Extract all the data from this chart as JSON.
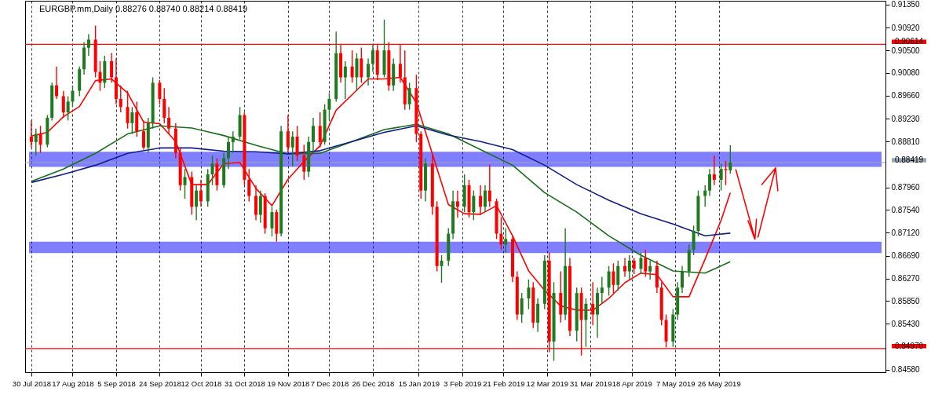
{
  "chart_data": {
    "type": "candlestick",
    "title": "EURGBP.mm,Daily 0.88276 0.88740 0.88214 0.88419",
    "xlim": [
      "2018-07-29",
      "2019-08-05"
    ],
    "xticks": [
      {
        "value": "2018-07-30",
        "label": "30 Jul 2018"
      },
      {
        "value": "2018-08-17",
        "label": "17 Aug 2018"
      },
      {
        "value": "2018-09-05",
        "label": "5 Sep 2018"
      },
      {
        "value": "2018-09-24",
        "label": "24 Sep 2018"
      },
      {
        "value": "2018-10-12",
        "label": "12 Oct 2018"
      },
      {
        "value": "2018-10-31",
        "label": "31 Oct 2018"
      },
      {
        "value": "2018-11-19",
        "label": "19 Nov 2018"
      },
      {
        "value": "2018-12-07",
        "label": "7 Dec 2018"
      },
      {
        "value": "2018-12-26",
        "label": "26 Dec 2018"
      },
      {
        "value": "2019-01-15",
        "label": "15 Jan 2019"
      },
      {
        "value": "2019-02-03",
        "label": "3 Feb 2019"
      },
      {
        "value": "2019-02-21",
        "label": "21 Feb 2019"
      },
      {
        "value": "2019-03-12",
        "label": "12 Mar 2019"
      },
      {
        "value": "2019-03-31",
        "label": "31 Mar 2019"
      },
      {
        "value": "2019-04-18",
        "label": "18 Apr 2019"
      },
      {
        "value": "2019-05-07",
        "label": "7 May 2019"
      },
      {
        "value": "2019-05-26",
        "label": "26 May 2019"
      }
    ],
    "ylim": [
      0.8453,
      0.9142
    ],
    "yticks": [
      {
        "value": 0.9135,
        "label": "0.91350"
      },
      {
        "value": 0.9092,
        "label": "0.90920"
      },
      {
        "value": 0.905,
        "label": "0.90500"
      },
      {
        "value": 0.9008,
        "label": "0.90080"
      },
      {
        "value": 0.8966,
        "label": "0.89660"
      },
      {
        "value": 0.8923,
        "label": "0.89230"
      },
      {
        "value": 0.8881,
        "label": "0.88810"
      },
      {
        "value": 0.8796,
        "label": "0.87960"
      },
      {
        "value": 0.8754,
        "label": "0.87540"
      },
      {
        "value": 0.8712,
        "label": "0.87120"
      },
      {
        "value": 0.8669,
        "label": "0.86690"
      },
      {
        "value": 0.8627,
        "label": "0.86270"
      },
      {
        "value": 0.8585,
        "label": "0.85850"
      },
      {
        "value": 0.8543,
        "label": "0.85430"
      },
      {
        "value": 0.8458,
        "label": "0.84580"
      }
    ],
    "grid": "x",
    "x": [
      "2018-07-30",
      "2018-08-01",
      "2018-08-03",
      "2018-08-06",
      "2018-08-08",
      "2018-08-10",
      "2018-08-13",
      "2018-08-15",
      "2018-08-17",
      "2018-08-20",
      "2018-08-22",
      "2018-08-24",
      "2018-08-27",
      "2018-08-29",
      "2018-08-31",
      "2018-09-03",
      "2018-09-05",
      "2018-09-07",
      "2018-09-10",
      "2018-09-12",
      "2018-09-14",
      "2018-09-17",
      "2018-09-19",
      "2018-09-21",
      "2018-09-24",
      "2018-09-26",
      "2018-09-28",
      "2018-10-01",
      "2018-10-03",
      "2018-10-05",
      "2018-10-08",
      "2018-10-10",
      "2018-10-12",
      "2018-10-15",
      "2018-10-17",
      "2018-10-19",
      "2018-10-22",
      "2018-10-24",
      "2018-10-26",
      "2018-10-29",
      "2018-10-31",
      "2018-11-02",
      "2018-11-05",
      "2018-11-07",
      "2018-11-09",
      "2018-11-12",
      "2018-11-14",
      "2018-11-16",
      "2018-11-19",
      "2018-11-21",
      "2018-11-23",
      "2018-11-26",
      "2018-11-28",
      "2018-11-30",
      "2018-12-03",
      "2018-12-05",
      "2018-12-07",
      "2018-12-10",
      "2018-12-12",
      "2018-12-14",
      "2018-12-17",
      "2018-12-19",
      "2018-12-21",
      "2018-12-24",
      "2018-12-26",
      "2018-12-28",
      "2018-12-31",
      "2019-01-02",
      "2019-01-04",
      "2019-01-07",
      "2019-01-09",
      "2019-01-11",
      "2019-01-14",
      "2019-01-16",
      "2019-01-18",
      "2019-01-21",
      "2019-01-23",
      "2019-01-25",
      "2019-01-28",
      "2019-01-30",
      "2019-02-01",
      "2019-02-04",
      "2019-02-06",
      "2019-02-08",
      "2019-02-11",
      "2019-02-13",
      "2019-02-15",
      "2019-02-18",
      "2019-02-20",
      "2019-02-22",
      "2019-02-25",
      "2019-02-27",
      "2019-03-01",
      "2019-03-04",
      "2019-03-06",
      "2019-03-08",
      "2019-03-11",
      "2019-03-13",
      "2019-03-15",
      "2019-03-18",
      "2019-03-20",
      "2019-03-22",
      "2019-03-25",
      "2019-03-27",
      "2019-03-29",
      "2019-04-01",
      "2019-04-03",
      "2019-04-05",
      "2019-04-08",
      "2019-04-10",
      "2019-04-12",
      "2019-04-15",
      "2019-04-17",
      "2019-04-19",
      "2019-04-22",
      "2019-04-24",
      "2019-04-26",
      "2019-04-29",
      "2019-05-01",
      "2019-05-03",
      "2019-05-06",
      "2019-05-08",
      "2019-05-10",
      "2019-05-13",
      "2019-05-15",
      "2019-05-17",
      "2019-05-20",
      "2019-05-22",
      "2019-05-24",
      "2019-05-27",
      "2019-05-29",
      "2019-05-31"
    ],
    "ohlc": [
      [
        0.889,
        0.892,
        0.887,
        0.888
      ],
      [
        0.888,
        0.8905,
        0.8855,
        0.8895
      ],
      [
        0.8895,
        0.891,
        0.886,
        0.8875
      ],
      [
        0.8875,
        0.893,
        0.887,
        0.8925
      ],
      [
        0.8925,
        0.899,
        0.892,
        0.8985
      ],
      [
        0.8985,
        0.902,
        0.896,
        0.8965
      ],
      [
        0.8965,
        0.8975,
        0.8925,
        0.8935
      ],
      [
        0.8935,
        0.8965,
        0.892,
        0.8955
      ],
      [
        0.8955,
        0.8985,
        0.8945,
        0.8975
      ],
      [
        0.8975,
        0.902,
        0.8965,
        0.9015
      ],
      [
        0.9015,
        0.9065,
        0.9005,
        0.9055
      ],
      [
        0.9055,
        0.908,
        0.904,
        0.907
      ],
      [
        0.907,
        0.9096,
        0.9,
        0.901
      ],
      [
        0.901,
        0.903,
        0.8975,
        0.899
      ],
      [
        0.899,
        0.904,
        0.898,
        0.903
      ],
      [
        0.903,
        0.9045,
        0.899,
        0.9
      ],
      [
        0.9,
        0.9035,
        0.895,
        0.896
      ],
      [
        0.896,
        0.8985,
        0.8935,
        0.8945
      ],
      [
        0.8945,
        0.8975,
        0.8905,
        0.8915
      ],
      [
        0.8915,
        0.8945,
        0.8895,
        0.8935
      ],
      [
        0.8935,
        0.8955,
        0.889,
        0.89
      ],
      [
        0.89,
        0.892,
        0.8866,
        0.887
      ],
      [
        0.887,
        0.8925,
        0.886,
        0.8915
      ],
      [
        0.8915,
        0.9,
        0.8905,
        0.899
      ],
      [
        0.899,
        0.8995,
        0.895,
        0.896
      ],
      [
        0.896,
        0.898,
        0.8915,
        0.8925
      ],
      [
        0.8925,
        0.8945,
        0.8895,
        0.8905
      ],
      [
        0.8905,
        0.8915,
        0.885,
        0.886
      ],
      [
        0.886,
        0.887,
        0.879,
        0.88
      ],
      [
        0.88,
        0.883,
        0.8775,
        0.8815
      ],
      [
        0.8815,
        0.8825,
        0.8745,
        0.876
      ],
      [
        0.876,
        0.88,
        0.8735,
        0.879
      ],
      [
        0.879,
        0.881,
        0.876,
        0.877
      ],
      [
        0.877,
        0.883,
        0.876,
        0.882
      ],
      [
        0.882,
        0.8855,
        0.88,
        0.884
      ],
      [
        0.884,
        0.885,
        0.879,
        0.88
      ],
      [
        0.88,
        0.886,
        0.8795,
        0.885
      ],
      [
        0.885,
        0.889,
        0.883,
        0.888
      ],
      [
        0.888,
        0.89,
        0.886,
        0.889
      ],
      [
        0.889,
        0.8945,
        0.8885,
        0.893
      ],
      [
        0.893,
        0.8935,
        0.88,
        0.881
      ],
      [
        0.881,
        0.883,
        0.877,
        0.878
      ],
      [
        0.878,
        0.88,
        0.8735,
        0.8745
      ],
      [
        0.8745,
        0.879,
        0.873,
        0.878
      ],
      [
        0.878,
        0.8785,
        0.871,
        0.872
      ],
      [
        0.872,
        0.876,
        0.8705,
        0.875
      ],
      [
        0.875,
        0.8755,
        0.8695,
        0.871
      ],
      [
        0.871,
        0.891,
        0.8705,
        0.89
      ],
      [
        0.89,
        0.893,
        0.886,
        0.887
      ],
      [
        0.887,
        0.89,
        0.8835,
        0.889
      ],
      [
        0.889,
        0.891,
        0.8845,
        0.8855
      ],
      [
        0.8855,
        0.8875,
        0.881,
        0.8825
      ],
      [
        0.8825,
        0.889,
        0.8815,
        0.888
      ],
      [
        0.888,
        0.8925,
        0.886,
        0.891
      ],
      [
        0.891,
        0.8935,
        0.887,
        0.888
      ],
      [
        0.888,
        0.895,
        0.8875,
        0.894
      ],
      [
        0.894,
        0.897,
        0.892,
        0.896
      ],
      [
        0.896,
        0.9085,
        0.8955,
        0.9045
      ],
      [
        0.9045,
        0.906,
        0.899,
        0.9
      ],
      [
        0.9,
        0.903,
        0.896,
        0.902
      ],
      [
        0.902,
        0.905,
        0.899,
        0.9
      ],
      [
        0.9,
        0.9045,
        0.8975,
        0.9035
      ],
      [
        0.9035,
        0.9055,
        0.899,
        0.9
      ],
      [
        0.9,
        0.9035,
        0.8985,
        0.9025
      ],
      [
        0.9025,
        0.906,
        0.901,
        0.905
      ],
      [
        0.905,
        0.906,
        0.8995,
        0.9005
      ],
      [
        0.9005,
        0.9107,
        0.9,
        0.905
      ],
      [
        0.905,
        0.9065,
        0.8975,
        0.8985
      ],
      [
        0.8985,
        0.9035,
        0.8975,
        0.9025
      ],
      [
        0.9025,
        0.906,
        0.899,
        0.9
      ],
      [
        0.9,
        0.905,
        0.894,
        0.895
      ],
      [
        0.895,
        0.899,
        0.894,
        0.898
      ],
      [
        0.898,
        0.9005,
        0.888,
        0.8895
      ],
      [
        0.8895,
        0.89,
        0.8775,
        0.879
      ],
      [
        0.879,
        0.885,
        0.877,
        0.884
      ],
      [
        0.884,
        0.8855,
        0.8745,
        0.876
      ],
      [
        0.876,
        0.877,
        0.864,
        0.865
      ],
      [
        0.865,
        0.867,
        0.8619,
        0.866
      ],
      [
        0.866,
        0.872,
        0.865,
        0.871
      ],
      [
        0.871,
        0.879,
        0.87,
        0.877
      ],
      [
        0.877,
        0.879,
        0.874,
        0.876
      ],
      [
        0.876,
        0.882,
        0.875,
        0.88
      ],
      [
        0.88,
        0.881,
        0.874,
        0.875
      ],
      [
        0.875,
        0.879,
        0.8735,
        0.878
      ],
      [
        0.878,
        0.88,
        0.8745,
        0.876
      ],
      [
        0.876,
        0.88,
        0.875,
        0.879
      ],
      [
        0.879,
        0.8838,
        0.876,
        0.877
      ],
      [
        0.877,
        0.8775,
        0.87,
        0.871
      ],
      [
        0.871,
        0.874,
        0.868,
        0.869
      ],
      [
        0.869,
        0.872,
        0.8675,
        0.87
      ],
      [
        0.87,
        0.8705,
        0.862,
        0.863
      ],
      [
        0.863,
        0.864,
        0.855,
        0.856
      ],
      [
        0.856,
        0.86,
        0.8545,
        0.859
      ],
      [
        0.859,
        0.8625,
        0.857,
        0.861
      ],
      [
        0.861,
        0.862,
        0.8535,
        0.8545
      ],
      [
        0.8545,
        0.859,
        0.8528,
        0.858
      ],
      [
        0.858,
        0.867,
        0.857,
        0.866
      ],
      [
        0.866,
        0.8675,
        0.849,
        0.851
      ],
      [
        0.851,
        0.862,
        0.8474,
        0.86
      ],
      [
        0.86,
        0.864,
        0.8545,
        0.856
      ],
      [
        0.856,
        0.872,
        0.855,
        0.865
      ],
      [
        0.865,
        0.8665,
        0.852,
        0.853
      ],
      [
        0.853,
        0.861,
        0.851,
        0.86
      ],
      [
        0.86,
        0.861,
        0.8484,
        0.855
      ],
      [
        0.855,
        0.859,
        0.85,
        0.858
      ],
      [
        0.858,
        0.862,
        0.854,
        0.856
      ],
      [
        0.856,
        0.861,
        0.8517,
        0.86
      ],
      [
        0.86,
        0.863,
        0.858,
        0.861
      ],
      [
        0.861,
        0.865,
        0.8595,
        0.864
      ],
      [
        0.864,
        0.8655,
        0.86,
        0.8615
      ],
      [
        0.8615,
        0.866,
        0.8605,
        0.865
      ],
      [
        0.865,
        0.8665,
        0.863,
        0.864
      ],
      [
        0.864,
        0.867,
        0.8625,
        0.866
      ],
      [
        0.866,
        0.8665,
        0.8635,
        0.8645
      ],
      [
        0.8645,
        0.8675,
        0.8635,
        0.8665
      ],
      [
        0.8665,
        0.868,
        0.863,
        0.864
      ],
      [
        0.864,
        0.866,
        0.8625,
        0.865
      ],
      [
        0.865,
        0.866,
        0.86,
        0.861
      ],
      [
        0.861,
        0.862,
        0.854,
        0.855
      ],
      [
        0.855,
        0.856,
        0.8499,
        0.851
      ],
      [
        0.851,
        0.857,
        0.85,
        0.856
      ],
      [
        0.856,
        0.862,
        0.855,
        0.861
      ],
      [
        0.861,
        0.865,
        0.86,
        0.864
      ],
      [
        0.864,
        0.869,
        0.863,
        0.868
      ],
      [
        0.868,
        0.8725,
        0.867,
        0.8715
      ],
      [
        0.8715,
        0.879,
        0.8705,
        0.878
      ],
      [
        0.878,
        0.88,
        0.876,
        0.879
      ],
      [
        0.879,
        0.883,
        0.878,
        0.882
      ],
      [
        0.882,
        0.8855,
        0.88,
        0.881
      ],
      [
        0.881,
        0.884,
        0.879,
        0.883
      ],
      [
        0.883,
        0.8845,
        0.88,
        0.8828
      ],
      [
        0.88276,
        0.8874,
        0.88214,
        0.88419
      ]
    ],
    "colors": [
      "#ff0000",
      "#1f7a1f",
      "#ff0000",
      "#1f7a1f",
      "#1f7a1f",
      "#ff0000",
      "#ff0000",
      "#1f7a1f",
      "#1f7a1f",
      "#1f7a1f",
      "#1f7a1f",
      "#1f7a1f",
      "#ff0000",
      "#ff0000",
      "#1f7a1f",
      "#ff0000",
      "#ff0000",
      "#ff0000",
      "#ff0000",
      "#1f7a1f",
      "#ff0000",
      "#ff0000",
      "#1f7a1f",
      "#1f7a1f",
      "#ff0000",
      "#ff0000",
      "#ff0000",
      "#ff0000",
      "#ff0000",
      "#1f7a1f",
      "#ff0000",
      "#1f7a1f",
      "#ff0000",
      "#1f7a1f",
      "#1f7a1f",
      "#ff0000",
      "#1f7a1f",
      "#1f7a1f",
      "#1f7a1f",
      "#1f7a1f",
      "#ff0000",
      "#ff0000",
      "#ff0000",
      "#1f7a1f",
      "#ff0000",
      "#1f7a1f",
      "#ff0000",
      "#1f7a1f",
      "#ff0000",
      "#1f7a1f",
      "#ff0000",
      "#ff0000",
      "#1f7a1f",
      "#1f7a1f",
      "#ff0000",
      "#1f7a1f",
      "#1f7a1f",
      "#1f7a1f",
      "#ff0000",
      "#1f7a1f",
      "#ff0000",
      "#1f7a1f",
      "#ff0000",
      "#1f7a1f",
      "#1f7a1f",
      "#ff0000",
      "#1f7a1f",
      "#ff0000",
      "#1f7a1f",
      "#ff0000",
      "#ff0000",
      "#1f7a1f",
      "#ff0000",
      "#ff0000",
      "#1f7a1f",
      "#ff0000",
      "#ff0000",
      "#1f7a1f",
      "#1f7a1f",
      "#1f7a1f",
      "#ff0000",
      "#1f7a1f",
      "#ff0000",
      "#1f7a1f",
      "#ff0000",
      "#1f7a1f",
      "#ff0000",
      "#ff0000",
      "#ff0000",
      "#1f7a1f",
      "#ff0000",
      "#ff0000",
      "#1f7a1f",
      "#1f7a1f",
      "#ff0000",
      "#1f7a1f",
      "#1f7a1f",
      "#ff0000",
      "#1f7a1f",
      "#ff0000",
      "#1f7a1f",
      "#ff0000",
      "#1f7a1f",
      "#ff0000",
      "#1f7a1f",
      "#ff0000",
      "#1f7a1f",
      "#1f7a1f",
      "#1f7a1f",
      "#ff0000",
      "#1f7a1f",
      "#ff0000",
      "#1f7a1f",
      "#ff0000",
      "#1f7a1f",
      "#ff0000",
      "#1f7a1f",
      "#ff0000",
      "#ff0000",
      "#ff0000",
      "#1f7a1f",
      "#1f7a1f",
      "#1f7a1f",
      "#1f7a1f",
      "#1f7a1f",
      "#1f7a1f",
      "#1f7a1f",
      "#1f7a1f",
      "#ff0000",
      "#1f7a1f",
      "#ff0000",
      "#1f7a1f"
    ],
    "series": [
      {
        "type": "line",
        "color": "#ff0000",
        "x": [
          "2018-07-30",
          "2018-08-06",
          "2018-08-13",
          "2018-08-20",
          "2018-08-27",
          "2018-09-03",
          "2018-09-10",
          "2018-09-17",
          "2018-09-24",
          "2018-10-01",
          "2018-10-08",
          "2018-10-15",
          "2018-10-22",
          "2018-10-29",
          "2018-11-05",
          "2018-11-12",
          "2018-11-19",
          "2018-11-26",
          "2018-12-03",
          "2018-12-10",
          "2018-12-17",
          "2018-12-24",
          "2018-12-31",
          "2019-01-07",
          "2019-01-14",
          "2019-01-21",
          "2019-01-28",
          "2019-02-04",
          "2019-02-11",
          "2019-02-18",
          "2019-02-25",
          "2019-03-04",
          "2019-03-11",
          "2019-03-18",
          "2019-03-25",
          "2019-04-01",
          "2019-04-08",
          "2019-04-15",
          "2019-04-22",
          "2019-04-29",
          "2019-05-06",
          "2019-05-13",
          "2019-05-20",
          "2019-05-27",
          "2019-05-31"
        ],
        "values": [
          0.8891,
          0.8898,
          0.8927,
          0.8946,
          0.8994,
          0.8997,
          0.8971,
          0.8917,
          0.8914,
          0.8881,
          0.8801,
          0.8801,
          0.884,
          0.8842,
          0.8794,
          0.8762,
          0.8811,
          0.8844,
          0.8873,
          0.8939,
          0.8968,
          0.8997,
          0.8997,
          0.9,
          0.8953,
          0.8858,
          0.8764,
          0.8747,
          0.8746,
          0.8762,
          0.8706,
          0.8641,
          0.8605,
          0.8576,
          0.8568,
          0.8568,
          0.859,
          0.8619,
          0.8637,
          0.8634,
          0.8593,
          0.8593,
          0.8663,
          0.8735,
          0.8786
        ]
      },
      {
        "type": "line",
        "color": "#1a6e1a",
        "x": [
          "2018-07-30",
          "2018-08-13",
          "2018-08-27",
          "2018-09-10",
          "2018-09-24",
          "2018-10-08",
          "2018-10-22",
          "2018-11-05",
          "2018-11-19",
          "2018-12-03",
          "2018-12-17",
          "2018-12-31",
          "2019-01-14",
          "2019-01-28",
          "2019-02-11",
          "2019-02-25",
          "2019-03-11",
          "2019-03-25",
          "2019-04-08",
          "2019-04-22",
          "2019-05-06",
          "2019-05-20",
          "2019-05-31"
        ],
        "values": [
          0.8807,
          0.883,
          0.8859,
          0.8895,
          0.891,
          0.8906,
          0.8892,
          0.8874,
          0.8858,
          0.8859,
          0.8881,
          0.8903,
          0.8913,
          0.8895,
          0.8866,
          0.8837,
          0.8786,
          0.875,
          0.8706,
          0.867,
          0.8641,
          0.8637,
          0.8658
        ]
      },
      {
        "type": "line",
        "color": "#101e8c",
        "x": [
          "2018-07-30",
          "2018-08-13",
          "2018-08-27",
          "2018-09-10",
          "2018-09-24",
          "2018-10-08",
          "2018-10-22",
          "2018-11-05",
          "2018-11-19",
          "2018-12-03",
          "2018-12-17",
          "2018-12-31",
          "2019-01-14",
          "2019-01-28",
          "2019-02-11",
          "2019-02-25",
          "2019-03-11",
          "2019-03-25",
          "2019-04-08",
          "2019-04-22",
          "2019-05-06",
          "2019-05-20",
          "2019-05-31"
        ],
        "values": [
          0.8805,
          0.882,
          0.8837,
          0.8859,
          0.8869,
          0.8869,
          0.8863,
          0.8862,
          0.8858,
          0.8864,
          0.8881,
          0.8898,
          0.891,
          0.8893,
          0.8881,
          0.8866,
          0.8837,
          0.8801,
          0.8772,
          0.8747,
          0.8728,
          0.8706,
          0.8711
        ]
      }
    ],
    "ref_lines": [
      {
        "axis": "y",
        "value": 0.90614,
        "label": "0.90614",
        "color": "#ff0000"
      },
      {
        "axis": "y",
        "value": 0.88419,
        "label": "0.88419",
        "color": "#9aa8b4"
      },
      {
        "axis": "y",
        "value": 0.8497,
        "label": "0.84970",
        "color": "#ff0000"
      }
    ],
    "bands": [
      {
        "axis": "y",
        "from": 0.8834,
        "to": 0.8862,
        "color": "#0000ff"
      },
      {
        "axis": "y",
        "from": 0.8674,
        "to": 0.8695,
        "color": "#0000ff"
      }
    ]
  }
}
